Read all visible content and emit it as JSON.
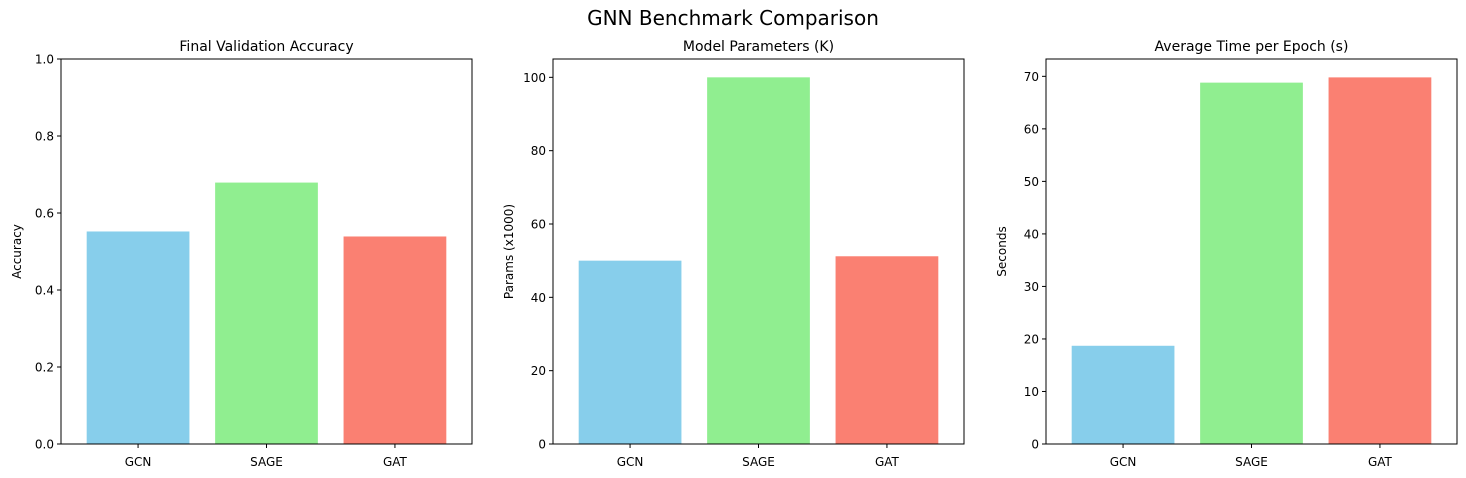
{
  "figure": {
    "suptitle": "GNN Benchmark Comparison"
  },
  "chart_data": [
    {
      "type": "bar",
      "title": "Final Validation Accuracy",
      "xlabel": "",
      "ylabel": "Accuracy",
      "categories": [
        "GCN",
        "SAGE",
        "GAT"
      ],
      "values": [
        0.552,
        0.679,
        0.539
      ],
      "colors": [
        "#87CEEB",
        "#90EE90",
        "#FA8072"
      ],
      "ylim": [
        0,
        1.0
      ],
      "yticks": [
        0.0,
        0.2,
        0.4,
        0.6,
        0.8,
        1.0
      ],
      "ytick_labels": [
        "0.0",
        "0.2",
        "0.4",
        "0.6",
        "0.8",
        "1.0"
      ],
      "grid": false
    },
    {
      "type": "bar",
      "title": "Model Parameters (K)",
      "xlabel": "",
      "ylabel": "Params (x1000)",
      "categories": [
        "GCN",
        "SAGE",
        "GAT"
      ],
      "values": [
        50.0,
        100.0,
        51.2
      ],
      "colors": [
        "#87CEEB",
        "#90EE90",
        "#FA8072"
      ],
      "ylim": [
        0,
        105
      ],
      "yticks": [
        0,
        20,
        40,
        60,
        80,
        100
      ],
      "ytick_labels": [
        "0",
        "20",
        "40",
        "60",
        "80",
        "100"
      ],
      "grid": false
    },
    {
      "type": "bar",
      "title": "Average Time per Epoch (s)",
      "xlabel": "",
      "ylabel": "Seconds",
      "categories": [
        "GCN",
        "SAGE",
        "GAT"
      ],
      "values": [
        18.7,
        68.8,
        69.8
      ],
      "colors": [
        "#87CEEB",
        "#90EE90",
        "#FA8072"
      ],
      "ylim": [
        0,
        73.3
      ],
      "yticks": [
        0,
        10,
        20,
        30,
        40,
        50,
        60,
        70
      ],
      "ytick_labels": [
        "0",
        "10",
        "20",
        "30",
        "40",
        "50",
        "60",
        "70"
      ],
      "grid": false
    }
  ]
}
